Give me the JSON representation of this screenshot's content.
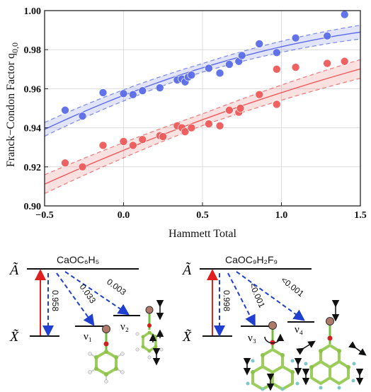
{
  "chart_data": {
    "type": "scatter",
    "xlabel": "Hammett Total",
    "ylabel": "Franck−Condon Factor q",
    "ylabel_sub": "0,0",
    "xlim": [
      -0.5,
      1.5
    ],
    "ylim": [
      0.9,
      1.0
    ],
    "xticks": [
      "−0.5",
      "0.0",
      "0.5",
      "1.0",
      "1.5"
    ],
    "yticks": [
      "0.90",
      "0.92",
      "0.94",
      "0.96",
      "0.98",
      "1.00"
    ],
    "grid": true,
    "series": [
      {
        "color": "#5b6be8",
        "points": [
          [
            -0.37,
            0.949
          ],
          [
            -0.26,
            0.946
          ],
          [
            -0.13,
            0.958
          ],
          [
            0.0,
            0.9575
          ],
          [
            0.06,
            0.957
          ],
          [
            0.12,
            0.959
          ],
          [
            0.23,
            0.9605
          ],
          [
            0.34,
            0.9645
          ],
          [
            0.37,
            0.965
          ],
          [
            0.39,
            0.9635
          ],
          [
            0.41,
            0.966
          ],
          [
            0.43,
            0.967
          ],
          [
            0.54,
            0.9705
          ],
          [
            0.61,
            0.968
          ],
          [
            0.67,
            0.9725
          ],
          [
            0.73,
            0.974
          ],
          [
            0.75,
            0.977
          ],
          [
            0.86,
            0.983
          ],
          [
            0.97,
            0.9785
          ],
          [
            1.09,
            0.986
          ],
          [
            1.29,
            0.987
          ],
          [
            1.4,
            0.998
          ]
        ],
        "fit": [
          0.9566,
          0.0315,
          -0.0066
        ],
        "band": 0.0022
      },
      {
        "color": "#ee5a5a",
        "points": [
          [
            -0.37,
            0.922
          ],
          [
            -0.26,
            0.92
          ],
          [
            -0.13,
            0.931
          ],
          [
            0.0,
            0.933
          ],
          [
            0.06,
            0.931
          ],
          [
            0.12,
            0.934
          ],
          [
            0.23,
            0.936
          ],
          [
            0.25,
            0.9355
          ],
          [
            0.34,
            0.941
          ],
          [
            0.37,
            0.94
          ],
          [
            0.39,
            0.938
          ],
          [
            0.43,
            0.94
          ],
          [
            0.54,
            0.942
          ],
          [
            0.61,
            0.941
          ],
          [
            0.67,
            0.949
          ],
          [
            0.73,
            0.948
          ],
          [
            0.74,
            0.95
          ],
          [
            0.86,
            0.957
          ],
          [
            0.97,
            0.952
          ],
          [
            0.97,
            0.97
          ],
          [
            1.09,
            0.971
          ],
          [
            1.29,
            0.973
          ],
          [
            1.4,
            0.974
          ]
        ],
        "fit": [
          0.9285,
          0.033,
          -0.0035
        ],
        "band": 0.003
      }
    ]
  },
  "diagrams": [
    {
      "molecule_label": "CaOC₆H₅",
      "upper_state": "Ã",
      "lower_state": "X̃",
      "fcf_values": [
        "0.958",
        "0.033",
        "0.003"
      ],
      "mode_labels": [
        "ν₁",
        "ν₂"
      ]
    },
    {
      "molecule_label": "CaOC₉H₂F₉",
      "upper_state": "Ã",
      "lower_state": "X̃",
      "fcf_values": [
        "0.998",
        "<0.001",
        "<0.001"
      ],
      "mode_labels": [
        "ν₃",
        "ν₄"
      ]
    }
  ],
  "colors": {
    "blue": "#5b6be8",
    "red": "#ee5a5a",
    "arrow_red": "#e02020",
    "arrow_blue": "#1f3fd0",
    "atom_carbon": "#8fc24a",
    "atom_ca": "#b07a6a",
    "atom_o": "#d02020",
    "atom_h": "#e8e8e8",
    "atom_f": "#7cc8c8"
  }
}
